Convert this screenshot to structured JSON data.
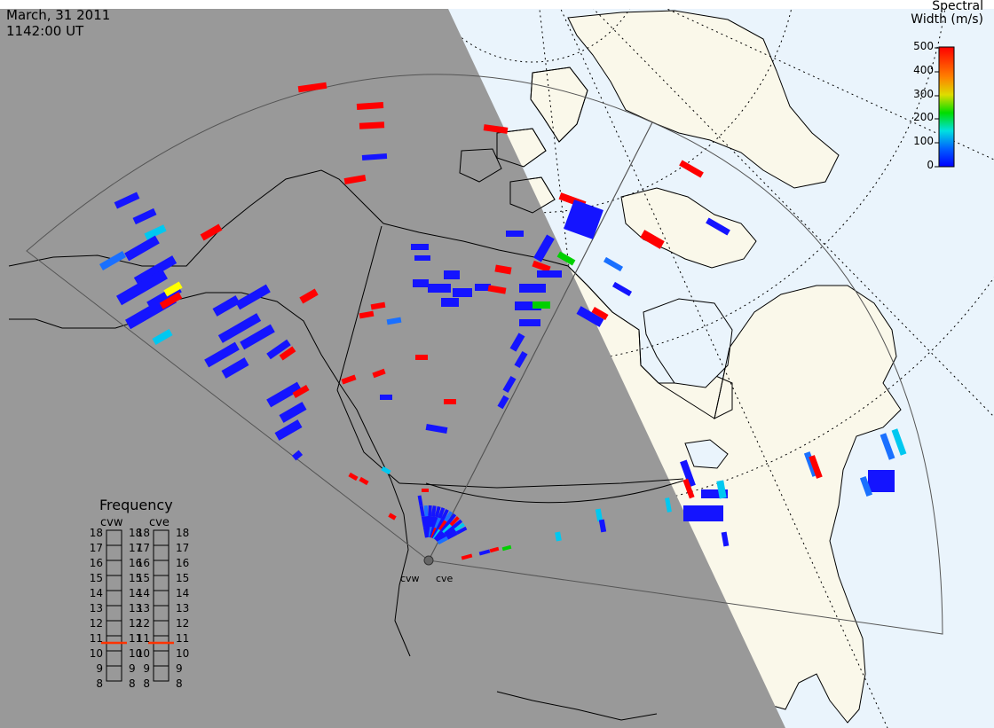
{
  "header": {
    "date": "March, 31 2011",
    "time": "1142:00 UT"
  },
  "colorbar": {
    "title_line1": "Spectral",
    "title_line2": "Width (m/s)",
    "ticks": [
      "500",
      "400",
      "300",
      "200",
      "100",
      "0"
    ],
    "range": [
      0,
      500
    ],
    "colors": [
      "#0000ff",
      "#0080ff",
      "#00e0e0",
      "#00dd00",
      "#ffff00",
      "#ff8000",
      "#ff0000"
    ]
  },
  "frequency": {
    "title": "Frequency",
    "radars": [
      "cvw",
      "cve"
    ],
    "levels": [
      "18",
      "17",
      "16",
      "15",
      "14",
      "13",
      "12",
      "11",
      "10",
      "9",
      "8"
    ],
    "markers": {
      "cvw": 11,
      "cve": 11
    }
  },
  "radar_labels": {
    "west": "cvw",
    "east": "cve"
  },
  "colors": {
    "night": "#999999",
    "land_day": "#faf8ea",
    "ocean_day": "#eaf4fc",
    "fov_line": "#555555"
  }
}
